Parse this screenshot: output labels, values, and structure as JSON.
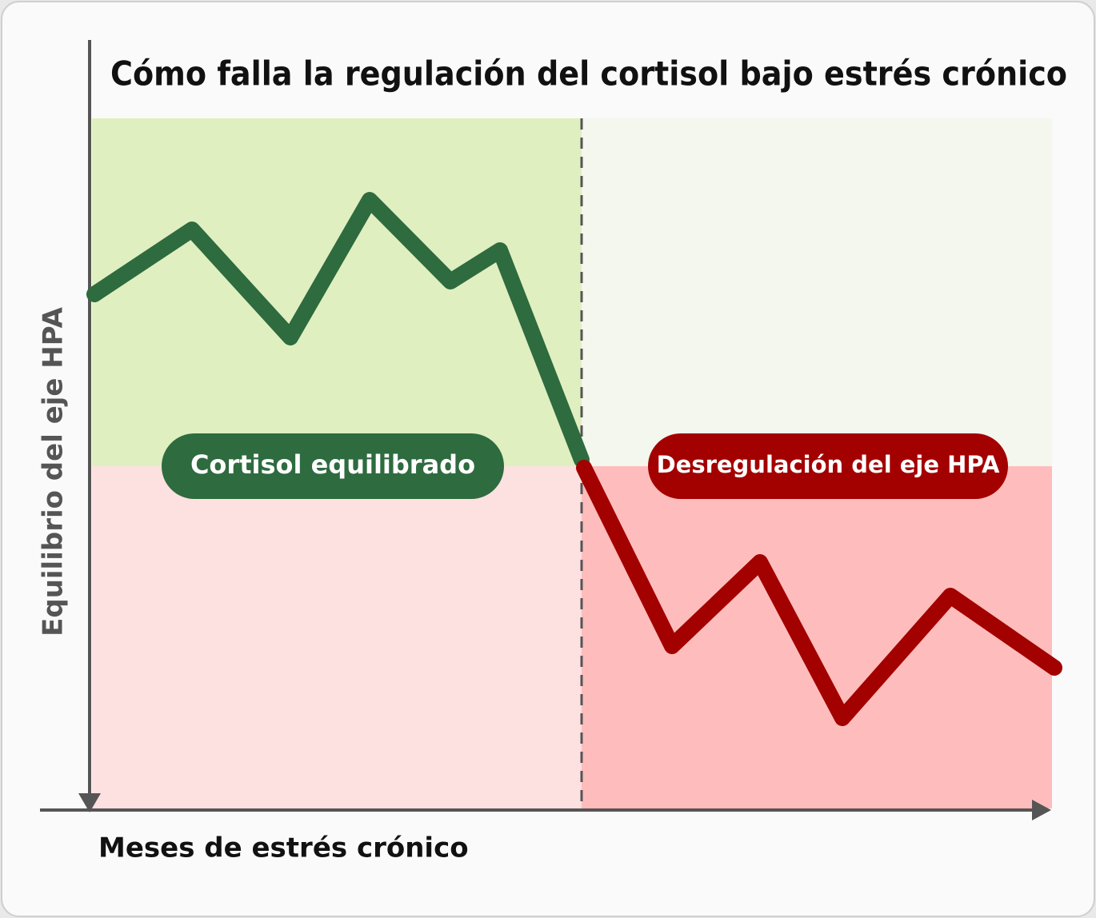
{
  "title": "Cómo falla la regulación del cortisol bajo estrés crónico",
  "axes": {
    "y_label": "Equilibrio del eje HPA",
    "x_label": "Meses de estrés crónico"
  },
  "zones": [
    {
      "label": "Cortisol equilibrado"
    },
    {
      "label": "Desregulación del eje HPA"
    }
  ]
}
